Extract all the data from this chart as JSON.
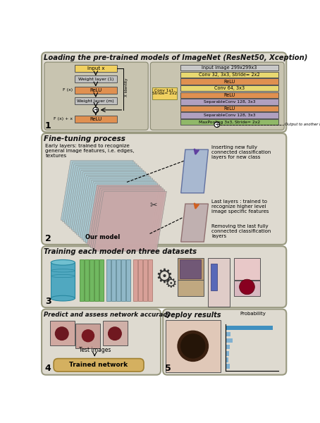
{
  "title1": "Loading the pre-trained models of ImageNet (ResNet50, Xception)",
  "title2": "Fine-tuning process",
  "title3": "Training each model on three datasets",
  "title4": "Predict and assess network accuracy",
  "title5": "Deploy results",
  "panel1_bg": "#dedad0",
  "panel2_bg": "#dedad0",
  "panel3_bg": "#dedad0",
  "panel4_bg": "#dedad0",
  "panel5_bg": "#dedad0",
  "box_yellow": "#f0d060",
  "box_orange": "#e09050",
  "box_gray": "#c0c0c0",
  "box_purple": "#b090b8",
  "box_green": "#88b868",
  "box_teal": "#50a8b8",
  "resnet_layers": [
    "Input image 299x299x3",
    "Conv 32, 3x3, Stride= 2x2",
    "ReLU",
    "Conv 64, 3x3",
    "ReLU",
    "SeparableConv 128, 3x3",
    "ReLU",
    "SeparableConv 128, 3x3",
    "MaxPooling 3x3, Stride= 2x2"
  ],
  "resnet_colors": [
    "#c8c8c8",
    "#e8d870",
    "#e09050",
    "#e8d870",
    "#e09050",
    "#b0a0c0",
    "#e09050",
    "#b0a0c0",
    "#90b868"
  ]
}
